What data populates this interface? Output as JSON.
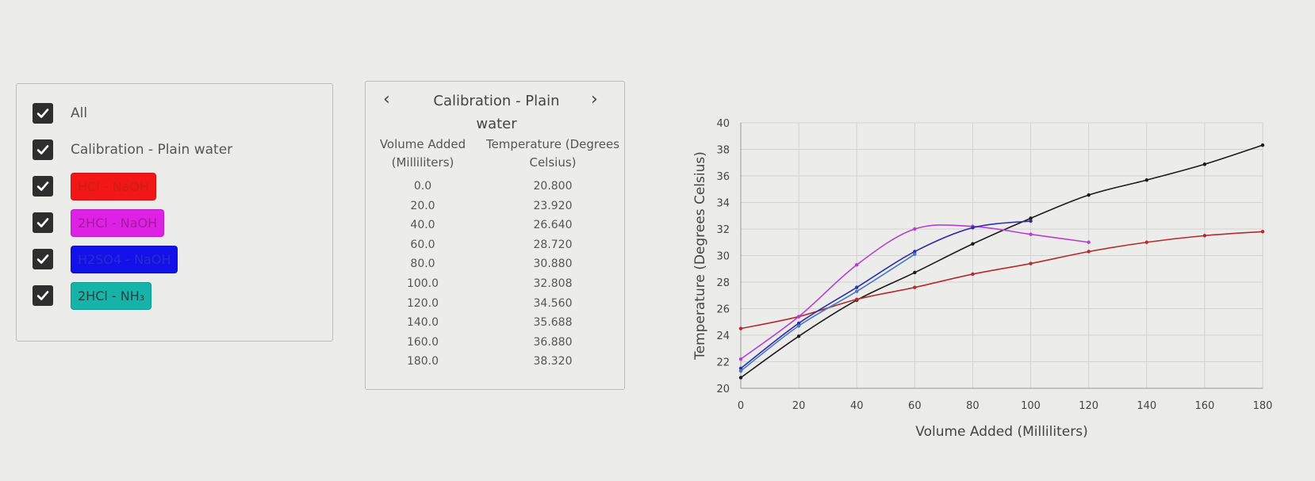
{
  "legend": {
    "items": [
      {
        "label": "All",
        "chip": false
      },
      {
        "label": "Calibration - Plain water",
        "chip": false
      },
      {
        "label": "HCl - NaOH",
        "chip": true,
        "bg": "#f31616",
        "fg": "#c9201a"
      },
      {
        "label": "2HCl - NaOH",
        "chip": true,
        "bg": "#dd22e6",
        "fg": "#a9179f"
      },
      {
        "label": "H2SO4 - NaOH",
        "chip": true,
        "bg": "#1212e8",
        "fg": "#2b2bd0"
      },
      {
        "label": "2HCl - NH₃",
        "chip": true,
        "bg": "#16b3a8",
        "fg": "#2a3f40"
      }
    ]
  },
  "table": {
    "title": "Calibration - Plain water",
    "prev_icon": "chevron-left-icon",
    "next_icon": "chevron-right-icon",
    "col1_header": "Volume Added (Milliliters)",
    "col2_header": "Temperature (Degrees Celsius)",
    "rows": [
      [
        "0.0",
        "20.800"
      ],
      [
        "20.0",
        "23.920"
      ],
      [
        "40.0",
        "26.640"
      ],
      [
        "60.0",
        "28.720"
      ],
      [
        "80.0",
        "30.880"
      ],
      [
        "100.0",
        "32.808"
      ],
      [
        "120.0",
        "34.560"
      ],
      [
        "140.0",
        "35.688"
      ],
      [
        "160.0",
        "36.880"
      ],
      [
        "180.0",
        "38.320"
      ]
    ]
  },
  "chart_data": {
    "type": "line",
    "xlabel": "Volume Added (Milliliters)",
    "ylabel": "Temperature (Degrees Celsius)",
    "xlim": [
      0,
      180
    ],
    "ylim": [
      20,
      40
    ],
    "xticks": [
      0,
      20,
      40,
      60,
      80,
      100,
      120,
      140,
      160,
      180
    ],
    "yticks": [
      20,
      22,
      24,
      26,
      28,
      30,
      32,
      34,
      36,
      38,
      40
    ],
    "grid": true,
    "series": [
      {
        "name": "Calibration - Plain water",
        "color": "#1b1b1b",
        "x": [
          0,
          20,
          40,
          60,
          80,
          100,
          120,
          140,
          160,
          180
        ],
        "y": [
          20.8,
          23.92,
          26.64,
          28.72,
          30.88,
          32.808,
          34.56,
          35.688,
          36.88,
          38.32
        ]
      },
      {
        "name": "HCl - NaOH",
        "color": "#b52a2a",
        "x": [
          0,
          20,
          40,
          60,
          80,
          100,
          120,
          140,
          160,
          180
        ],
        "y": [
          24.5,
          25.4,
          26.7,
          27.6,
          28.6,
          29.4,
          30.3,
          31.0,
          31.5,
          31.8
        ]
      },
      {
        "name": "2HCl - NaOH",
        "color": "#b83ed2",
        "x": [
          0,
          20,
          40,
          60,
          80,
          100,
          120
        ],
        "y": [
          22.2,
          25.4,
          29.3,
          32.0,
          32.2,
          31.6,
          31.0
        ]
      },
      {
        "name": "H2SO4 - NaOH",
        "color": "#2f2fa8",
        "x": [
          0,
          20,
          40,
          60,
          80,
          100
        ],
        "y": [
          21.5,
          24.9,
          27.6,
          30.3,
          32.1,
          32.6
        ]
      },
      {
        "name": "2HCl - NH₃",
        "color": "#4a79bf",
        "x": [
          0,
          20,
          40,
          60
        ],
        "y": [
          21.3,
          24.7,
          27.3,
          30.1
        ]
      }
    ]
  }
}
